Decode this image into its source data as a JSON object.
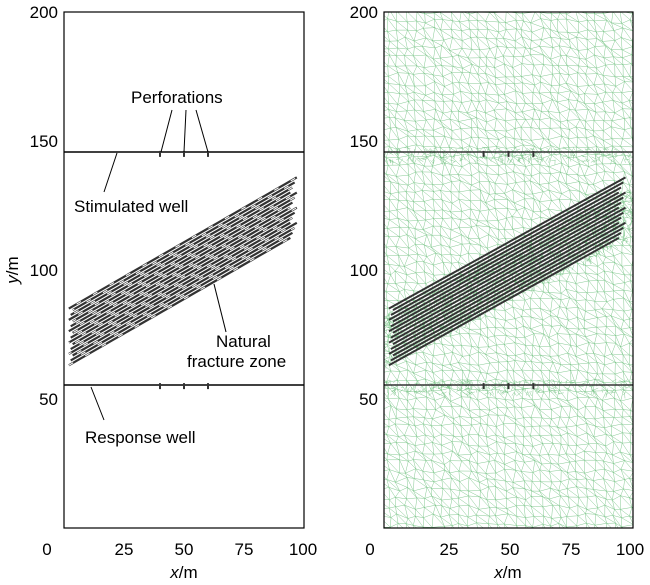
{
  "panels": {
    "left": {
      "x_axis": {
        "label_italic": "x",
        "label_unit": "/m",
        "range": [
          0,
          100
        ],
        "tick_labels": [
          "0",
          "25",
          "50",
          "75",
          "100"
        ]
      },
      "y_axis": {
        "label_italic": "y",
        "label_unit": "/m",
        "range": [
          0,
          200
        ],
        "tick_labels": [
          "50",
          "100",
          "150",
          "200"
        ]
      }
    },
    "right": {
      "x_axis": {
        "label_italic": "x",
        "label_unit": "/m",
        "range": [
          0,
          100
        ],
        "tick_labels": [
          "0",
          "25",
          "50",
          "75",
          "100"
        ]
      },
      "y_axis": {
        "tick_labels": [
          "50",
          "100",
          "150",
          "200"
        ]
      }
    }
  },
  "annotations": {
    "perforations": "Perforations",
    "stimulated_well": "Stimulated well",
    "natural_fracture_line1": "Natural",
    "natural_fracture_line2": "fracture zone",
    "response_well": "Response well"
  },
  "wells": {
    "stimulated_y": 145,
    "response_y": 55,
    "perforation_x": [
      40,
      50,
      60
    ]
  },
  "fracture_zone": {
    "x_range": [
      2,
      97
    ],
    "y_at_x0_range": [
      62,
      84
    ],
    "angle_deg": 27,
    "fracture_count": 16
  },
  "colors": {
    "mesh": "#6fbf7e",
    "fracture": "#333333",
    "frame": "#000000"
  }
}
